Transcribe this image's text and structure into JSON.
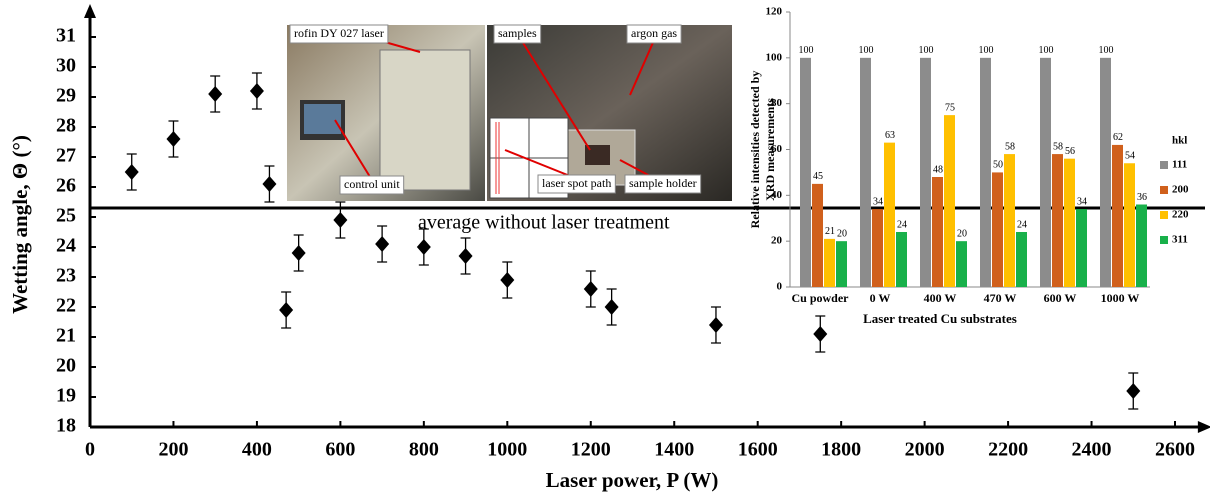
{
  "chart_data": [
    {
      "type": "scatter",
      "xlabel": "Laser power, P (W)",
      "ylabel": "Wetting angle, Θ (°)",
      "x": [
        100,
        200,
        300,
        400,
        430,
        470,
        500,
        600,
        700,
        800,
        900,
        1000,
        1200,
        1250,
        1500,
        1750,
        2500
      ],
      "values": [
        26.5,
        27.6,
        29.1,
        29.2,
        26.1,
        21.9,
        23.8,
        24.9,
        24.1,
        24.0,
        23.7,
        22.9,
        22.6,
        22.0,
        21.4,
        21.1,
        19.2
      ],
      "error": [
        0.6,
        0.6,
        0.6,
        0.6,
        0.6,
        0.6,
        0.6,
        0.6,
        0.6,
        0.6,
        0.6,
        0.6,
        0.6,
        0.6,
        0.6,
        0.6,
        0.6
      ],
      "color": "#000000",
      "xlim": [
        0,
        2650
      ],
      "ylim": [
        18,
        31.5
      ],
      "xticks": [
        0,
        200,
        400,
        600,
        800,
        1000,
        1200,
        1400,
        1600,
        1800,
        2000,
        2200,
        2400,
        2600
      ],
      "yticks": [
        18,
        19,
        20,
        21,
        22,
        23,
        24,
        25,
        26,
        27,
        28,
        29,
        30,
        31
      ],
      "average_line": {
        "value": 25.3,
        "label": "average without laser treatment"
      },
      "photo_labels": [
        "rofin DY 027 laser",
        "control unit",
        "samples",
        "argon gas",
        "laser spot path",
        "sample holder"
      ]
    },
    {
      "type": "bar",
      "xlabel": "Laser treated Cu substrates",
      "ylabel": [
        "Relative intensities detected by",
        "XRD measurements"
      ],
      "legend_title": "hkl",
      "categories": [
        "Cu powder",
        "0 W",
        "400 W",
        "470 W",
        "600 W",
        "1000 W"
      ],
      "series": [
        {
          "name": "111",
          "color": "#8c8c8c",
          "values": [
            100,
            100,
            100,
            100,
            100,
            100
          ]
        },
        {
          "name": "200",
          "color": "#d0601c",
          "values": [
            45,
            34,
            48,
            50,
            58,
            62
          ]
        },
        {
          "name": "220",
          "color": "#ffc000",
          "values": [
            21,
            63,
            75,
            58,
            56,
            54
          ]
        },
        {
          "name": "311",
          "color": "#18b04a",
          "values": [
            20,
            24,
            20,
            24,
            34,
            36
          ]
        }
      ],
      "ylim": [
        0,
        120
      ],
      "yticks": [
        0,
        20,
        40,
        60,
        80,
        100,
        120
      ]
    }
  ]
}
